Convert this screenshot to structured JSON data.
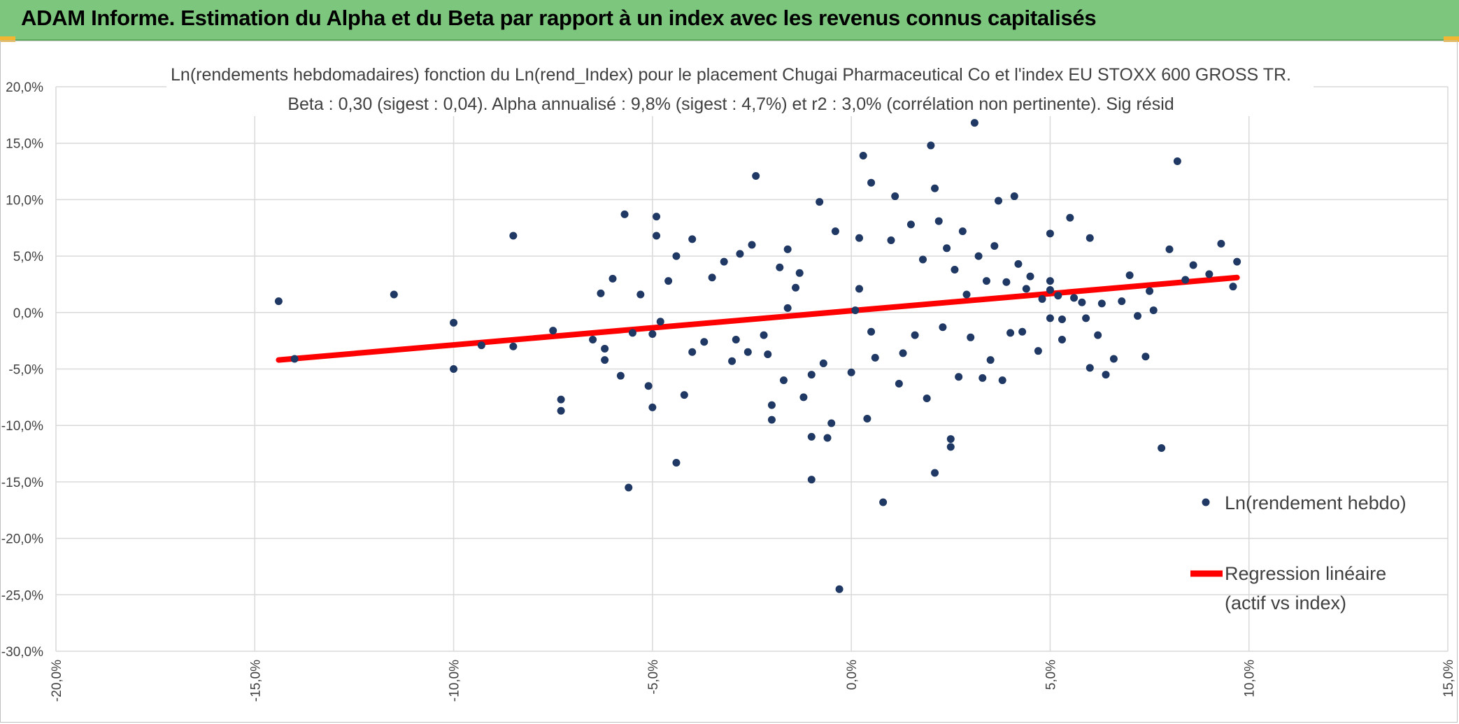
{
  "header": {
    "title": "ADAM Informe. Estimation du Alpha et du Beta par rapport à un index avec les revenus connus capitalisés",
    "bg_color": "#7dc67d",
    "corner_color": "#f2b632"
  },
  "chart_data": {
    "type": "scatter",
    "title": "Ln(rendements hebdomadaires) fonction du Ln(rend_Index) pour le placement Chugai Pharmaceutical Co  et l'index EU STOXX 600 GROSS TR.",
    "subtitle": "Beta : 0,30 (sigest : 0,04). Alpha annualisé : 9,8% (sigest : 4,7%) et r2 : 3,0% (corrélation non pertinente). Sig résid",
    "xlabel": "",
    "ylabel": "",
    "xlim": [
      -0.2,
      0.15
    ],
    "ylim": [
      -0.3,
      0.2
    ],
    "x_ticks": [
      -0.2,
      -0.15,
      -0.1,
      -0.05,
      0.0,
      0.05,
      0.1,
      0.15
    ],
    "y_ticks": [
      0.2,
      0.15,
      0.1,
      0.05,
      0.0,
      -0.05,
      -0.1,
      -0.15,
      -0.2,
      -0.25,
      -0.3
    ],
    "x_tick_labels": [
      "-20,0%",
      "-15,0%",
      "-10,0%",
      "-5,0%",
      "0,0%",
      "5,0%",
      "10,0%",
      "15,0%"
    ],
    "y_tick_labels": [
      "20,0%",
      "15,0%",
      "10,0%",
      "5,0%",
      "0,0%",
      "-5,0%",
      "-10,0%",
      "-15,0%",
      "-20,0%",
      "-25,0%",
      "-30,0%"
    ],
    "grid": true,
    "legend_position": "right",
    "series": [
      {
        "name": "Ln(rendement hebdo)",
        "kind": "scatter",
        "color": "#1f3864",
        "points": [
          [
            -0.144,
            0.01
          ],
          [
            -0.14,
            -0.041
          ],
          [
            -0.115,
            0.016
          ],
          [
            -0.1,
            -0.009
          ],
          [
            -0.1,
            -0.05
          ],
          [
            -0.093,
            -0.029
          ],
          [
            -0.085,
            0.068
          ],
          [
            -0.085,
            -0.03
          ],
          [
            -0.075,
            -0.016
          ],
          [
            -0.073,
            -0.077
          ],
          [
            -0.073,
            -0.087
          ],
          [
            -0.065,
            -0.024
          ],
          [
            -0.063,
            0.017
          ],
          [
            -0.062,
            -0.032
          ],
          [
            -0.062,
            -0.042
          ],
          [
            -0.06,
            0.03
          ],
          [
            -0.058,
            -0.056
          ],
          [
            -0.057,
            0.087
          ],
          [
            -0.056,
            -0.155
          ],
          [
            -0.055,
            -0.018
          ],
          [
            -0.053,
            0.016
          ],
          [
            -0.051,
            -0.065
          ],
          [
            -0.05,
            -0.019
          ],
          [
            -0.049,
            0.068
          ],
          [
            -0.048,
            -0.008
          ],
          [
            -0.046,
            0.028
          ],
          [
            -0.05,
            -0.084
          ],
          [
            -0.049,
            0.085
          ],
          [
            -0.044,
            0.05
          ],
          [
            -0.044,
            -0.133
          ],
          [
            -0.042,
            -0.073
          ],
          [
            -0.04,
            -0.035
          ],
          [
            -0.04,
            0.065
          ],
          [
            -0.037,
            -0.026
          ],
          [
            -0.035,
            0.031
          ],
          [
            -0.032,
            0.045
          ],
          [
            -0.03,
            -0.043
          ],
          [
            -0.029,
            -0.024
          ],
          [
            -0.028,
            0.052
          ],
          [
            -0.026,
            -0.035
          ],
          [
            -0.025,
            0.06
          ],
          [
            -0.024,
            0.121
          ],
          [
            -0.022,
            -0.02
          ],
          [
            -0.021,
            -0.037
          ],
          [
            -0.02,
            -0.082
          ],
          [
            -0.02,
            -0.095
          ],
          [
            -0.018,
            0.04
          ],
          [
            -0.017,
            -0.06
          ],
          [
            -0.016,
            0.056
          ],
          [
            -0.014,
            0.022
          ],
          [
            -0.012,
            -0.075
          ],
          [
            -0.01,
            -0.055
          ],
          [
            -0.01,
            -0.148
          ],
          [
            -0.01,
            -0.11
          ],
          [
            -0.008,
            0.098
          ],
          [
            -0.007,
            -0.045
          ],
          [
            -0.006,
            -0.111
          ],
          [
            -0.005,
            -0.098
          ],
          [
            -0.004,
            0.072
          ],
          [
            -0.003,
            -0.245
          ],
          [
            0.0,
            -0.053
          ],
          [
            0.002,
            0.066
          ],
          [
            0.003,
            0.139
          ],
          [
            0.004,
            -0.094
          ],
          [
            0.005,
            0.115
          ],
          [
            0.006,
            -0.04
          ],
          [
            0.008,
            -0.168
          ],
          [
            0.01,
            0.064
          ],
          [
            0.011,
            0.103
          ],
          [
            0.012,
            -0.063
          ],
          [
            0.013,
            -0.036
          ],
          [
            0.015,
            0.078
          ],
          [
            0.016,
            -0.02
          ],
          [
            0.018,
            0.047
          ],
          [
            0.019,
            -0.076
          ],
          [
            0.02,
            0.148
          ],
          [
            0.021,
            0.11
          ],
          [
            0.021,
            -0.142
          ],
          [
            0.022,
            0.081
          ],
          [
            0.023,
            -0.013
          ],
          [
            0.024,
            0.057
          ],
          [
            0.025,
            -0.112
          ],
          [
            0.025,
            -0.119
          ],
          [
            0.026,
            0.038
          ],
          [
            0.027,
            -0.057
          ],
          [
            0.028,
            0.072
          ],
          [
            0.029,
            0.016
          ],
          [
            0.03,
            -0.022
          ],
          [
            0.031,
            0.168
          ],
          [
            0.032,
            0.05
          ],
          [
            0.033,
            -0.058
          ],
          [
            0.034,
            0.028
          ],
          [
            0.035,
            -0.042
          ],
          [
            0.036,
            0.059
          ],
          [
            0.037,
            0.099
          ],
          [
            0.038,
            -0.06
          ],
          [
            0.039,
            0.027
          ],
          [
            0.04,
            -0.018
          ],
          [
            0.041,
            0.103
          ],
          [
            0.042,
            0.043
          ],
          [
            0.043,
            -0.017
          ],
          [
            0.044,
            0.021
          ],
          [
            0.045,
            0.032
          ],
          [
            0.047,
            -0.034
          ],
          [
            0.048,
            0.012
          ],
          [
            0.05,
            0.028
          ],
          [
            0.05,
            0.07
          ],
          [
            0.05,
            0.02
          ],
          [
            0.05,
            -0.005
          ],
          [
            0.052,
            0.015
          ],
          [
            0.053,
            -0.006
          ],
          [
            0.053,
            -0.024
          ],
          [
            0.055,
            0.084
          ],
          [
            0.056,
            0.013
          ],
          [
            0.058,
            0.009
          ],
          [
            0.059,
            -0.005
          ],
          [
            0.06,
            -0.049
          ],
          [
            0.06,
            0.066
          ],
          [
            0.062,
            -0.02
          ],
          [
            0.063,
            0.008
          ],
          [
            0.064,
            -0.055
          ],
          [
            0.066,
            -0.041
          ],
          [
            0.068,
            0.01
          ],
          [
            0.07,
            0.033
          ],
          [
            0.072,
            -0.003
          ],
          [
            0.074,
            -0.039
          ],
          [
            0.075,
            0.019
          ],
          [
            0.076,
            0.002
          ],
          [
            0.078,
            -0.12
          ],
          [
            0.08,
            0.056
          ],
          [
            0.082,
            0.134
          ],
          [
            0.084,
            0.029
          ],
          [
            0.086,
            0.042
          ],
          [
            0.09,
            0.034
          ],
          [
            0.093,
            0.061
          ],
          [
            0.096,
            0.023
          ],
          [
            0.097,
            0.045
          ],
          [
            -0.013,
            0.035
          ],
          [
            -0.016,
            0.004
          ],
          [
            0.002,
            0.021
          ],
          [
            0.005,
            -0.017
          ],
          [
            0.001,
            0.002
          ]
        ]
      },
      {
        "name": "Regression linéaire (actif vs index)",
        "legend_lines": [
          "Regression linéaire",
          "(actif vs index)"
        ],
        "kind": "line",
        "color": "#ff0000",
        "points": [
          [
            -0.144,
            -0.042
          ],
          [
            0.097,
            0.031
          ]
        ]
      }
    ]
  }
}
